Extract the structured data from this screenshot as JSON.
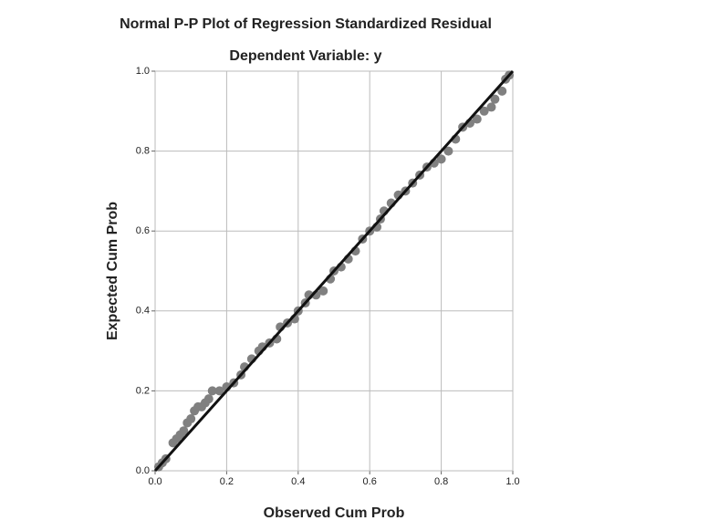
{
  "chart_data": {
    "type": "scatter",
    "title": "Normal P-P Plot of Regression Standardized Residual",
    "subtitle": "Dependent Variable: y",
    "x_label": "Observed Cum Prob",
    "y_label": "Expected Cum Prob",
    "xlim": [
      0,
      1
    ],
    "ylim": [
      0,
      1
    ],
    "xticks": [
      {
        "value": 0,
        "label": "0.0"
      },
      0.2,
      0.4,
      0.6,
      0.8,
      {
        "value": 1,
        "label": "1.0"
      }
    ],
    "yticks": [
      {
        "value": 0,
        "label": "0.0"
      },
      0.2,
      0.4,
      0.6,
      0.8,
      {
        "value": 1,
        "label": "1.0"
      }
    ],
    "grid": true,
    "color": "#808080",
    "x": [
      0.01,
      0.02,
      0.03,
      0.05,
      0.06,
      0.07,
      0.08,
      0.09,
      0.1,
      0.11,
      0.12,
      0.13,
      0.14,
      0.15,
      0.16,
      0.18,
      0.2,
      0.22,
      0.24,
      0.25,
      0.27,
      0.29,
      0.3,
      0.32,
      0.34,
      0.35,
      0.37,
      0.39,
      0.4,
      0.42,
      0.43,
      0.45,
      0.47,
      0.49,
      0.5,
      0.52,
      0.54,
      0.56,
      0.58,
      0.6,
      0.62,
      0.63,
      0.64,
      0.66,
      0.68,
      0.7,
      0.72,
      0.74,
      0.76,
      0.78,
      0.8,
      0.82,
      0.84,
      0.86,
      0.88,
      0.9,
      0.92,
      0.94,
      0.95,
      0.97,
      0.98,
      0.99
    ],
    "y": [
      0.01,
      0.02,
      0.03,
      0.07,
      0.08,
      0.09,
      0.1,
      0.12,
      0.13,
      0.15,
      0.16,
      0.16,
      0.17,
      0.18,
      0.2,
      0.2,
      0.21,
      0.22,
      0.24,
      0.26,
      0.28,
      0.3,
      0.31,
      0.32,
      0.33,
      0.36,
      0.37,
      0.38,
      0.4,
      0.42,
      0.44,
      0.44,
      0.45,
      0.48,
      0.5,
      0.51,
      0.53,
      0.55,
      0.58,
      0.6,
      0.61,
      0.63,
      0.65,
      0.67,
      0.69,
      0.7,
      0.72,
      0.74,
      0.76,
      0.77,
      0.78,
      0.8,
      0.83,
      0.86,
      0.87,
      0.88,
      0.9,
      0.91,
      0.93,
      0.95,
      0.98,
      0.99
    ]
  }
}
